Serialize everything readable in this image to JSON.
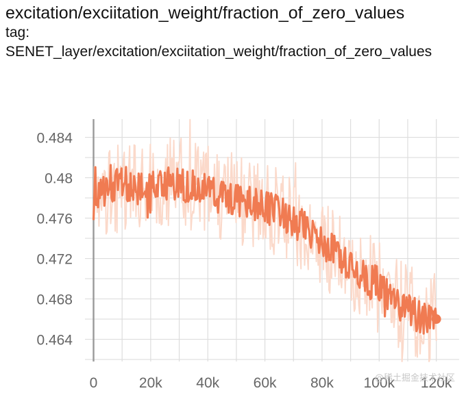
{
  "header": {
    "title": "excitation/exciitation_weight/fraction_of_zero_values",
    "tag_label": "tag:",
    "tag_value": "SENET_layer/excitation/exciitation_weight/fraction_of_zero_values"
  },
  "watermark": "@稀土掘金技术社区",
  "colors": {
    "smoothed": "#f07b52",
    "raw": "#fbd9ca",
    "grid": "#dddddd",
    "axis": "#999999"
  },
  "chart_data": {
    "type": "line",
    "title": "excitation/exciitation_weight/fraction_of_zero_values",
    "xlabel": "",
    "ylabel": "",
    "xlim": [
      -3000,
      128000
    ],
    "ylim": [
      0.4618,
      0.4858
    ],
    "x_ticks": [
      0,
      20000,
      40000,
      60000,
      80000,
      100000,
      120000
    ],
    "x_tick_labels": [
      "0",
      "20k",
      "40k",
      "60k",
      "80k",
      "100k",
      "120k"
    ],
    "y_ticks": [
      0.464,
      0.468,
      0.472,
      0.476,
      0.48,
      0.484
    ],
    "y_tick_labels": [
      "0.464",
      "0.468",
      "0.472",
      "0.476",
      "0.48",
      "0.484"
    ],
    "grid": true,
    "series": [
      {
        "name": "smoothed",
        "x": [
          0,
          5000,
          10000,
          15000,
          20000,
          25000,
          30000,
          35000,
          40000,
          45000,
          50000,
          55000,
          60000,
          65000,
          70000,
          75000,
          80000,
          85000,
          90000,
          95000,
          100000,
          105000,
          110000,
          115000,
          120000
        ],
        "values": [
          0.4775,
          0.479,
          0.4795,
          0.479,
          0.479,
          0.4795,
          0.4795,
          0.479,
          0.4788,
          0.478,
          0.4778,
          0.4775,
          0.477,
          0.4765,
          0.4755,
          0.475,
          0.4735,
          0.4725,
          0.4715,
          0.47,
          0.4695,
          0.468,
          0.467,
          0.466,
          0.466
        ]
      },
      {
        "name": "raw",
        "x": [
          0,
          5000,
          10000,
          15000,
          20000,
          25000,
          30000,
          35000,
          40000,
          45000,
          50000,
          55000,
          60000,
          65000,
          70000,
          75000,
          80000,
          85000,
          90000,
          95000,
          100000,
          105000,
          110000,
          115000,
          120000
        ],
        "values": [
          0.477,
          0.479,
          0.479,
          0.479,
          0.479,
          0.4795,
          0.48,
          0.479,
          0.479,
          0.478,
          0.478,
          0.4775,
          0.477,
          0.4765,
          0.4755,
          0.475,
          0.4735,
          0.4725,
          0.4715,
          0.47,
          0.4695,
          0.468,
          0.467,
          0.466,
          0.466
        ]
      }
    ],
    "last_point": {
      "x": 120000,
      "y": 0.466
    }
  }
}
